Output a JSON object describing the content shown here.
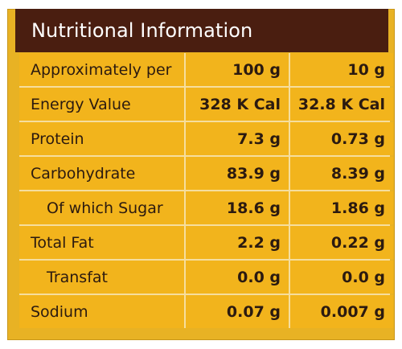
{
  "header": {
    "title": "Nutritional Information"
  },
  "table": {
    "rows": [
      {
        "label": "Approximately per",
        "per100": "100 g",
        "per10": "10 g"
      },
      {
        "label": "Energy Value",
        "per100": "328 K Cal",
        "per10": "32.8 K Cal"
      },
      {
        "label": "Protein",
        "per100": "7.3 g",
        "per10": "0.73 g"
      },
      {
        "label": "Carbohydrate",
        "per100": "83.9 g",
        "per10": "8.39 g"
      },
      {
        "label": "Of which Sugar",
        "per100": "18.6 g",
        "per10": "1.86 g"
      },
      {
        "label": "Total Fat",
        "per100": "2.2 g",
        "per10": "0.22 g"
      },
      {
        "label": "Transfat",
        "per100": "0.0 g",
        "per10": "0.0 g"
      },
      {
        "label": "Sodium",
        "per100": "0.07 g",
        "per10": "0.007 g"
      }
    ]
  },
  "colors": {
    "header_bg": "#4a1e10",
    "cell_bg": "#f2b41c",
    "panel_bg": "#e8b224",
    "grid_lines": "#f6de9e",
    "text": "#2b1a10"
  }
}
